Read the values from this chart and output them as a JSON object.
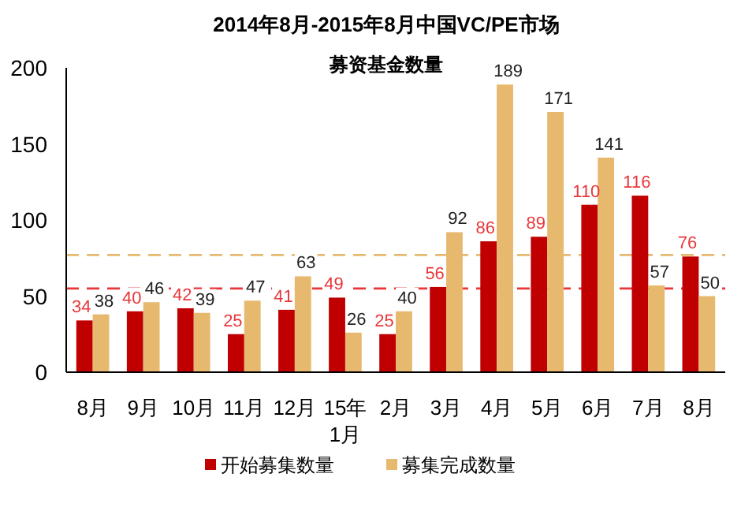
{
  "chart_data": {
    "type": "bar",
    "title": "2014年8月-2015年8月中国VC/PE市场",
    "subtitle": "募资基金数量",
    "categories": [
      "8月",
      "9月",
      "10月",
      "11月",
      "12月",
      "15年1月",
      "2月",
      "3月",
      "4月",
      "5月",
      "6月",
      "7月",
      "8月"
    ],
    "series": [
      {
        "name": "开始募集数量",
        "color": "#c00000",
        "values": [
          34,
          40,
          42,
          25,
          41,
          49,
          25,
          56,
          86,
          89,
          110,
          116,
          76
        ]
      },
      {
        "name": "募集完成数量",
        "color": "#e6b96f",
        "values": [
          38,
          46,
          39,
          47,
          63,
          26,
          40,
          92,
          189,
          171,
          141,
          57,
          50
        ]
      }
    ],
    "ylim": [
      0,
      200
    ],
    "yticks": [
      0,
      50,
      100,
      150,
      200
    ],
    "grid": false,
    "legend": "bottom",
    "data_labels": true,
    "ref_lines": [
      {
        "axis": "y",
        "value": 55,
        "color": "#e8373b",
        "line_style": "dashed"
      },
      {
        "axis": "y",
        "value": 77,
        "color": "#e6b96f",
        "line_style": "dashed"
      }
    ]
  }
}
